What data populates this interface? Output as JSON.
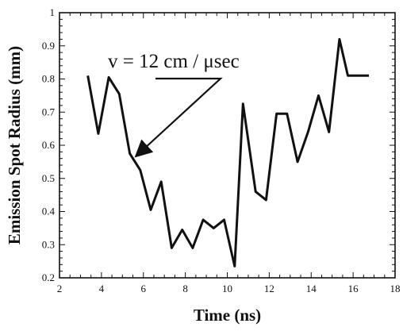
{
  "chart_data": {
    "type": "line",
    "title": "",
    "xlabel": "Time (ns)",
    "ylabel": "Emission Spot Radius (mm)",
    "xlim": [
      2,
      18
    ],
    "ylim": [
      0.2,
      1.0
    ],
    "x_ticks": [
      2,
      4,
      6,
      8,
      10,
      12,
      14,
      16,
      18
    ],
    "y_ticks": [
      0.2,
      0.3,
      0.4,
      0.5,
      0.6,
      0.7,
      0.8,
      0.9,
      1.0
    ],
    "x_tick_labels": [
      "2",
      "4",
      "6",
      "8",
      "10",
      "12",
      "14",
      "16",
      "18"
    ],
    "y_tick_labels": [
      "0.2",
      "0.3",
      "0.4",
      "0.5",
      "0.6",
      "0.7",
      "0.8",
      "0.9",
      "1"
    ],
    "grid": false,
    "series": [
      {
        "color": "#111111",
        "x": [
          3.35,
          3.85,
          4.35,
          4.85,
          5.35,
          5.85,
          6.35,
          6.85,
          7.35,
          7.85,
          8.35,
          8.85,
          9.35,
          9.85,
          10.35,
          10.75,
          11.35,
          11.85,
          12.35,
          12.85,
          13.35,
          13.85,
          14.35,
          14.85,
          15.35,
          15.75,
          16.25,
          16.75
        ],
        "y": [
          0.81,
          0.635,
          0.805,
          0.755,
          0.575,
          0.525,
          0.405,
          0.49,
          0.29,
          0.345,
          0.29,
          0.375,
          0.35,
          0.375,
          0.235,
          0.725,
          0.46,
          0.435,
          0.695,
          0.695,
          0.55,
          0.64,
          0.75,
          0.64,
          0.92,
          0.81,
          0.81,
          0.81
        ]
      }
    ],
    "annotations": [
      {
        "text": "v = 12 cm / μsec",
        "arrow_target": [
          5.7,
          0.57
        ]
      }
    ]
  }
}
